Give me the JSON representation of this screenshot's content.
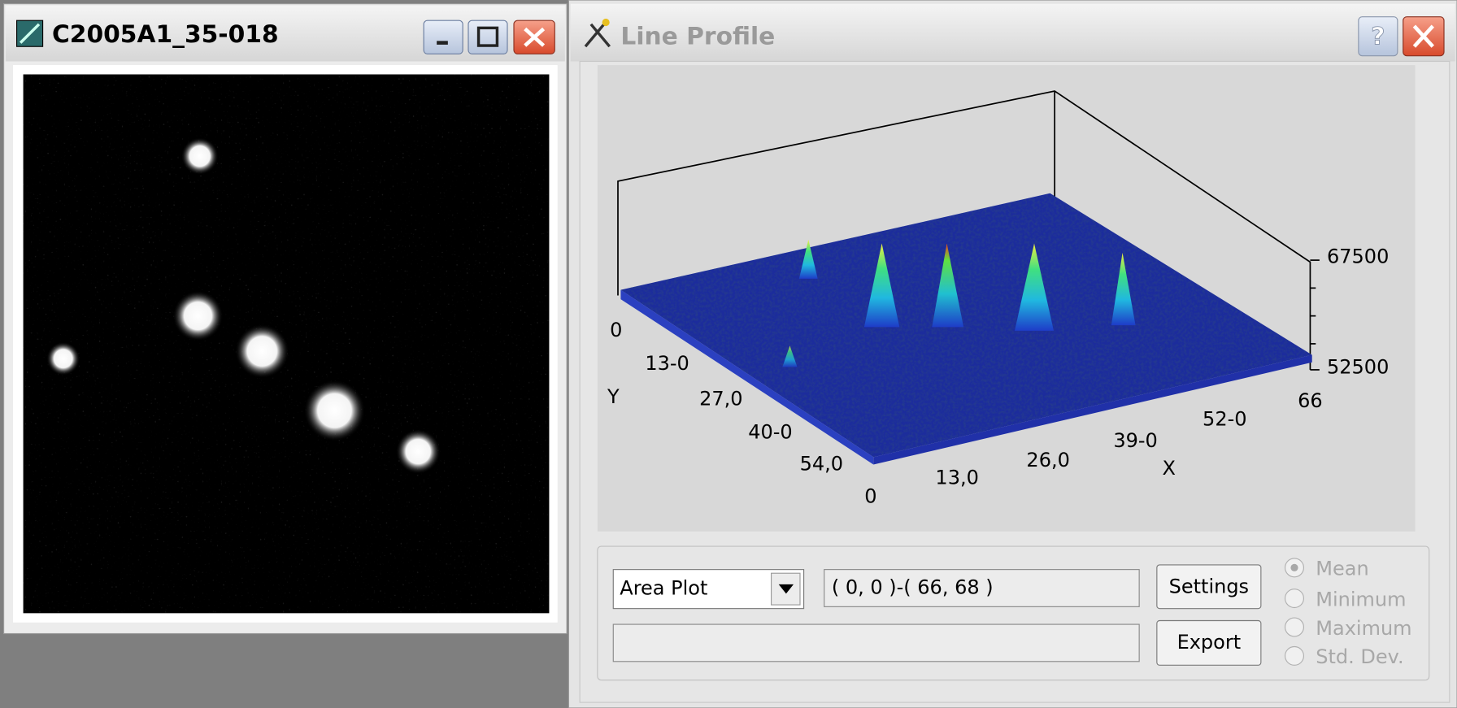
{
  "windows": {
    "image": {
      "title": "C2005A1_35-018"
    },
    "profile": {
      "title": "Line Profile",
      "plot": {
        "y_axis": {
          "label": "Y",
          "ticks": [
            "0",
            "13-0",
            "27,0",
            "40-0",
            "54,0"
          ]
        },
        "x_axis": {
          "label": "X",
          "ticks": [
            "0",
            "13,0",
            "26,0",
            "39-0",
            "52-0",
            "66"
          ]
        },
        "z_axis": {
          "ticks": [
            "67500",
            "52500"
          ]
        }
      },
      "controls": {
        "plot_type": "Area Plot",
        "range": "( 0, 0 )-( 66, 68 )",
        "settings_button": "Settings",
        "export_button": "Export",
        "statistics": [
          "Mean",
          "Minimum",
          "Maximum",
          "Std. Dev."
        ]
      }
    }
  }
}
